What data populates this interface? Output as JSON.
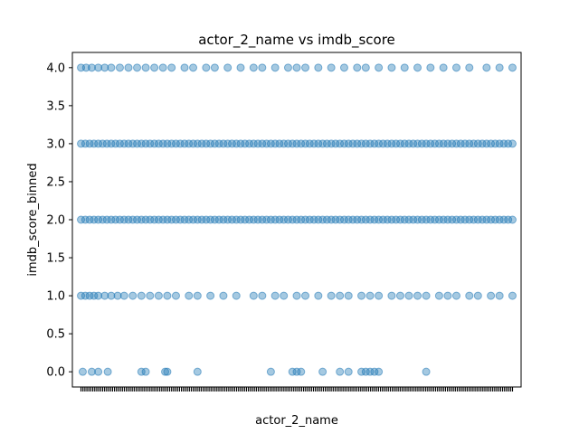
{
  "chart_data": {
    "type": "scatter",
    "title": "actor_2_name vs imdb_score",
    "xlabel": "actor_2_name",
    "ylabel": "imdb_score_binned",
    "ylim": [
      -0.2,
      4.2
    ],
    "yticks": [
      0.0,
      0.5,
      1.0,
      1.5,
      2.0,
      2.5,
      3.0,
      3.5,
      4.0
    ],
    "ytick_labels": [
      "0.0",
      "0.5",
      "1.0",
      "1.5",
      "2.0",
      "2.5",
      "3.0",
      "3.5",
      "4.0"
    ],
    "x_category_count": 2800,
    "grid": false,
    "legend": "none",
    "color": "#1f77b4",
    "series": [
      {
        "y": 0.0,
        "x": [
          4,
          25,
          40,
          62,
          140,
          150,
          195,
          200,
          270,
          440,
          490,
          500,
          510,
          560,
          600,
          620,
          650,
          660,
          670,
          680,
          690,
          800
        ]
      },
      {
        "y": 1.0,
        "x": [
          0,
          10,
          20,
          30,
          40,
          55,
          70,
          85,
          100,
          120,
          140,
          160,
          180,
          200,
          220,
          250,
          270,
          300,
          330,
          360,
          400,
          420,
          450,
          470,
          500,
          520,
          550,
          580,
          600,
          620,
          650,
          670,
          690,
          720,
          740,
          760,
          780,
          800,
          830,
          850,
          870,
          900,
          920,
          950,
          970,
          1000
        ]
      },
      {
        "y": 2.0,
        "x": [
          0,
          10,
          20,
          30,
          40,
          50,
          60,
          70,
          80,
          90,
          100,
          110,
          120,
          130,
          140,
          150,
          160,
          170,
          180,
          190,
          200,
          210,
          220,
          230,
          240,
          250,
          260,
          270,
          280,
          290,
          300,
          310,
          320,
          330,
          340,
          350,
          360,
          370,
          380,
          390,
          400,
          410,
          420,
          430,
          440,
          450,
          460,
          470,
          480,
          490,
          500,
          510,
          520,
          530,
          540,
          550,
          560,
          570,
          580,
          590,
          600,
          610,
          620,
          630,
          640,
          650,
          660,
          670,
          680,
          690,
          700,
          710,
          720,
          730,
          740,
          750,
          760,
          770,
          780,
          790,
          800,
          810,
          820,
          830,
          840,
          850,
          860,
          870,
          880,
          890,
          900,
          910,
          920,
          930,
          940,
          950,
          960,
          970,
          980,
          990,
          1000
        ]
      },
      {
        "y": 3.0,
        "x": [
          0,
          10,
          20,
          30,
          40,
          50,
          60,
          70,
          80,
          90,
          100,
          110,
          120,
          130,
          140,
          150,
          160,
          170,
          180,
          190,
          200,
          210,
          220,
          230,
          240,
          250,
          260,
          270,
          280,
          290,
          300,
          310,
          320,
          330,
          340,
          350,
          360,
          370,
          380,
          390,
          400,
          410,
          420,
          430,
          440,
          450,
          460,
          470,
          480,
          490,
          500,
          510,
          520,
          530,
          540,
          550,
          560,
          570,
          580,
          590,
          600,
          610,
          620,
          630,
          640,
          650,
          660,
          670,
          680,
          690,
          700,
          710,
          720,
          730,
          740,
          750,
          760,
          770,
          780,
          790,
          800,
          810,
          820,
          830,
          840,
          850,
          860,
          870,
          880,
          890,
          900,
          910,
          920,
          930,
          940,
          950,
          960,
          970,
          980,
          990,
          1000
        ]
      },
      {
        "y": 4.0,
        "x": [
          0,
          12,
          25,
          40,
          55,
          70,
          90,
          110,
          130,
          150,
          170,
          190,
          210,
          240,
          260,
          290,
          310,
          340,
          370,
          400,
          420,
          450,
          480,
          500,
          520,
          550,
          580,
          610,
          640,
          660,
          690,
          720,
          750,
          780,
          810,
          840,
          870,
          900,
          940,
          970,
          1000
        ]
      }
    ]
  }
}
